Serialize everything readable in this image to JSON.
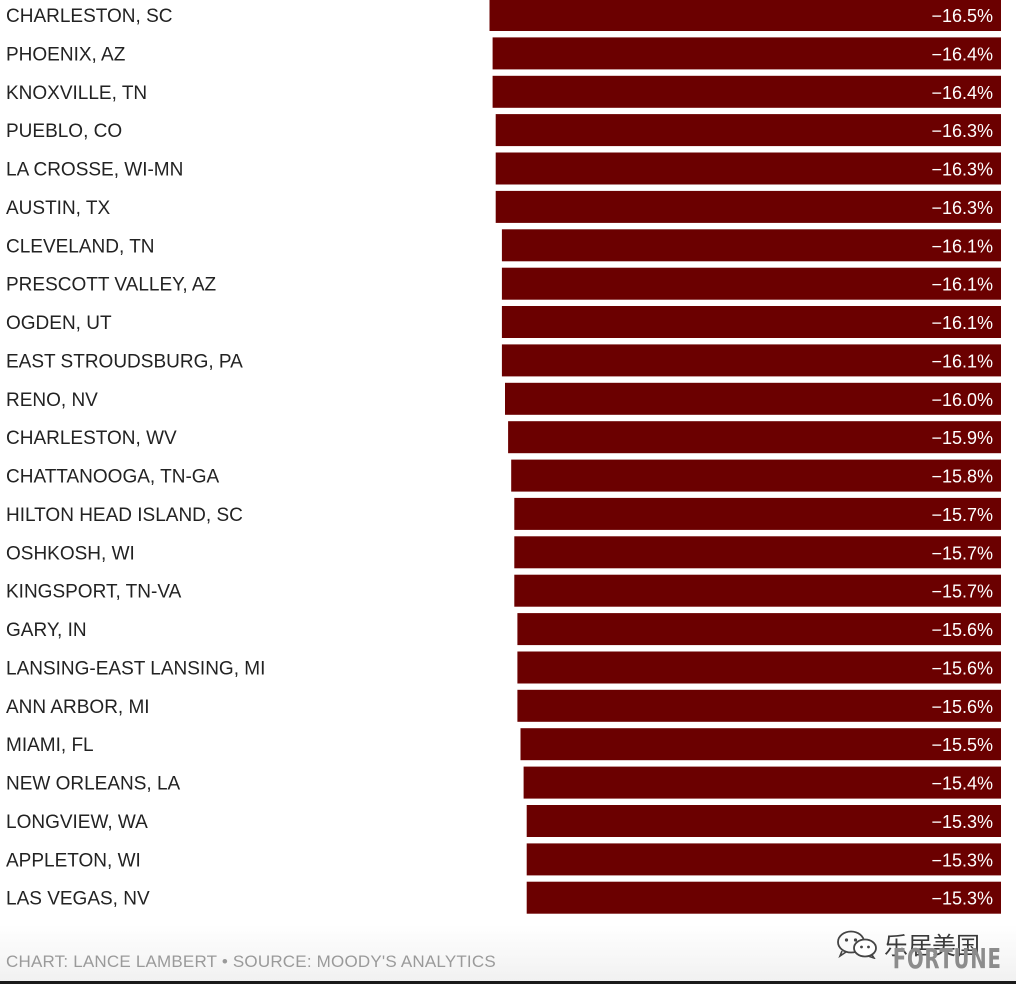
{
  "chart_data": {
    "type": "bar",
    "orientation": "horizontal",
    "categories": [
      "CHARLESTON, SC",
      "PHOENIX, AZ",
      "KNOXVILLE, TN",
      "PUEBLO, CO",
      "LA CROSSE, WI-MN",
      "AUSTIN, TX",
      "CLEVELAND, TN",
      "PRESCOTT VALLEY, AZ",
      "OGDEN, UT",
      "EAST STROUDSBURG, PA",
      "RENO, NV",
      "CHARLESTON, WV",
      "CHATTANOOGA, TN-GA",
      "HILTON HEAD ISLAND, SC",
      "OSHKOSH, WI",
      "KINGSPORT, TN-VA",
      "GARY, IN",
      "LANSING-EAST LANSING, MI",
      "ANN ARBOR, MI",
      "MIAMI, FL",
      "NEW ORLEANS, LA",
      "LONGVIEW, WA",
      "APPLETON, WI",
      "LAS VEGAS, NV"
    ],
    "values": [
      -16.5,
      -16.4,
      -16.4,
      -16.3,
      -16.3,
      -16.3,
      -16.1,
      -16.1,
      -16.1,
      -16.1,
      -16.0,
      -15.9,
      -15.8,
      -15.7,
      -15.7,
      -15.7,
      -15.6,
      -15.6,
      -15.6,
      -15.5,
      -15.4,
      -15.3,
      -15.3,
      -15.3
    ],
    "value_labels": [
      "−16.5%",
      "−16.4%",
      "−16.4%",
      "−16.3%",
      "−16.3%",
      "−16.3%",
      "−16.1%",
      "−16.1%",
      "−16.1%",
      "−16.1%",
      "−16.0%",
      "−15.9%",
      "−15.8%",
      "−15.7%",
      "−15.7%",
      "−15.7%",
      "−15.6%",
      "−15.6%",
      "−15.6%",
      "−15.5%",
      "−15.4%",
      "−15.3%",
      "−15.3%",
      "−15.3%"
    ],
    "xlim": [
      0,
      -16.5
    ],
    "bar_color": "#6b0000",
    "label_color": "#222222",
    "value_label_color": "#ffffff",
    "grid": false,
    "title": "",
    "xlabel": "",
    "ylabel": ""
  },
  "footer": {
    "source": "CHART: LANCE LAMBERT • SOURCE: MOODY'S ANALYTICS",
    "wechat_account": "乐居美国",
    "brand": "FORTUNE"
  }
}
